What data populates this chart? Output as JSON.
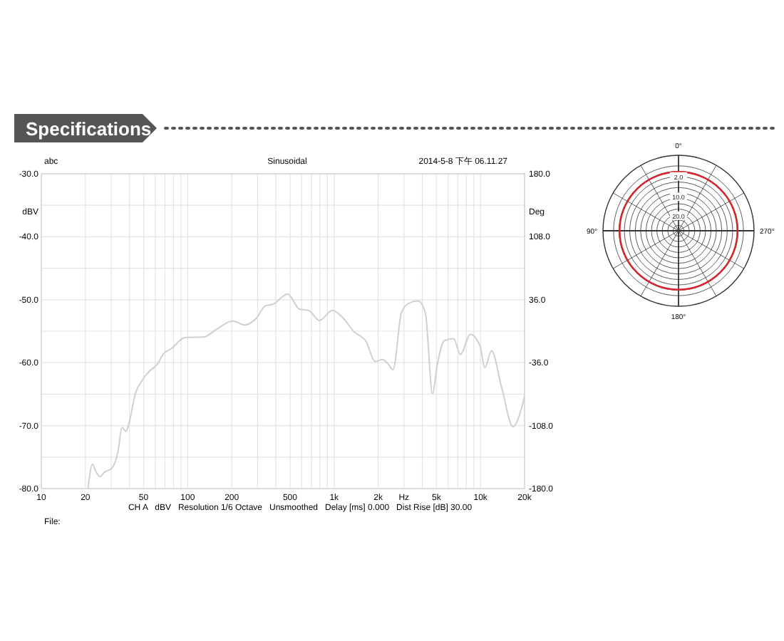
{
  "chart_data": [
    {
      "type": "line",
      "title": "Sinusoidal",
      "xlabel": "Hz",
      "ylabel": "dBV",
      "y2label": "Deg",
      "log": "x",
      "grid": true,
      "annotations": [
        "Specifications",
        "abc",
        "2014-5-8 下午 06.11.27",
        "CH A   dBV   Resolution 1/6 Octave   Unsmoothed   Delay [ms] 0.000   Dist Rise [dB] 30.00",
        "File:"
      ],
      "xlim": [
        10,
        20000
      ],
      "ylim": [
        -80,
        -30
      ],
      "y2lim": [
        -180,
        180
      ],
      "xticks": [
        10,
        20,
        {
          "value": 30,
          "label": null
        },
        {
          "value": 40,
          "label": null
        },
        50,
        {
          "value": 60,
          "label": null
        },
        {
          "value": 70,
          "label": null
        },
        {
          "value": 80,
          "label": null
        },
        {
          "value": 90,
          "label": null
        },
        100,
        200,
        {
          "value": 300,
          "label": null
        },
        {
          "value": 400,
          "label": null
        },
        500,
        {
          "value": 600,
          "label": null
        },
        {
          "value": 700,
          "label": null
        },
        {
          "value": 800,
          "label": null
        },
        {
          "value": 900,
          "label": null
        },
        {
          "value": 1000,
          "label": "1k"
        },
        {
          "value": 2000,
          "label": "2k"
        },
        {
          "value": 3000,
          "label": null
        },
        {
          "value": 4000,
          "label": null
        },
        {
          "value": 5000,
          "label": "5k"
        },
        {
          "value": 6000,
          "label": null
        },
        {
          "value": 7000,
          "label": null
        },
        {
          "value": 8000,
          "label": null
        },
        {
          "value": 9000,
          "label": null
        },
        {
          "value": 10000,
          "label": "10k"
        },
        {
          "value": 20000,
          "label": "20k"
        }
      ],
      "yticks": [
        {
          "value": -80,
          "label": "-80.0"
        },
        {
          "value": -75,
          "label": null
        },
        {
          "value": -70,
          "label": "-70.0"
        },
        {
          "value": -65,
          "label": null
        },
        {
          "value": -60,
          "label": "-60.0"
        },
        {
          "value": -55,
          "label": null
        },
        {
          "value": -50,
          "label": "-50.0"
        },
        {
          "value": -45,
          "label": null
        },
        {
          "value": -40,
          "label": "-40.0"
        },
        {
          "value": -35,
          "label": null
        },
        {
          "value": -30,
          "label": "-30.0"
        }
      ],
      "y2ticks": [
        {
          "value": -180,
          "label": "-180.0"
        },
        {
          "value": -108,
          "label": "-108.0"
        },
        {
          "value": -36,
          "label": "-36.0"
        },
        {
          "value": 36,
          "label": "36.0"
        },
        {
          "value": 108,
          "label": "108.0"
        },
        {
          "value": 180,
          "label": "180.0"
        }
      ],
      "series": [
        {
          "color": "#d0d0d0",
          "x": [
            20.8,
            22.4,
            23.3,
            25.1,
            27.0,
            30.2,
            33.3,
            35.6,
            37.8,
            39.9,
            43.9,
            49.2,
            55.0,
            61.4,
            68.8,
            76.9,
            96.3,
            130,
            157,
            203,
            245,
            295,
            338,
            384,
            482,
            580,
            670,
            793,
            975,
            1130,
            1370,
            1650,
            1910,
            2140,
            2300,
            2530,
            2880,
            3220,
            3740,
            4200,
            4700,
            5060,
            5660,
            6560,
            7280,
            8530,
            9940,
            10700,
            11900,
            13900,
            16700,
            18700,
            20000
          ],
          "values": [
            -80.0,
            -76.1,
            -77.0,
            -78.1,
            -77.4,
            -76.8,
            -74.3,
            -70.3,
            -70.9,
            -69.4,
            -64.9,
            -62.7,
            -61.3,
            -60.4,
            -58.5,
            -57.8,
            -56.0,
            -55.9,
            -54.7,
            -53.4,
            -54.0,
            -52.9,
            -51.0,
            -50.7,
            -49.1,
            -51.5,
            -51.7,
            -53.3,
            -51.7,
            -52.7,
            -55.1,
            -56.6,
            -59.8,
            -59.5,
            -60.0,
            -61.1,
            -52.1,
            -50.6,
            -50.2,
            -52.1,
            -64.9,
            -60.4,
            -56.5,
            -56.2,
            -58.7,
            -55.5,
            -57.4,
            -60.8,
            -58.1,
            -63.8,
            -70.2,
            -67.9,
            -65.3
          ]
        }
      ]
    },
    {
      "type": "other",
      "annotations": [
        "0°",
        "270°",
        "180°",
        "90°",
        "2.0",
        "10.0",
        "20.0"
      ]
    }
  ]
}
